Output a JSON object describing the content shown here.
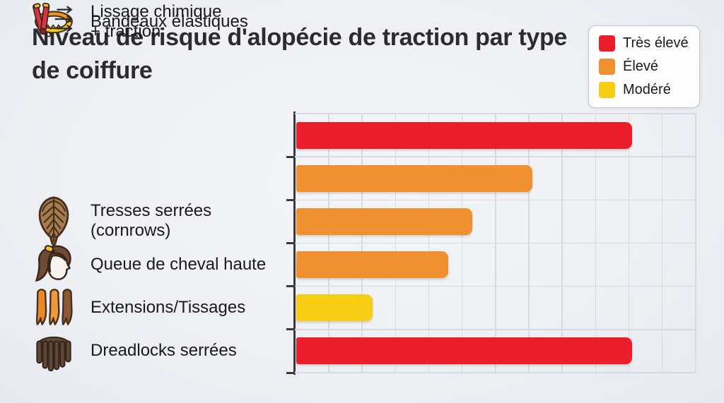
{
  "title": "Niveau de risque d'alopécie de traction par type de coiffure",
  "legend": {
    "items": [
      {
        "label": "Très élevé",
        "color": "#ec1e2c"
      },
      {
        "label": "Élevé",
        "color": "#ef9130"
      },
      {
        "label": "Modéré",
        "color": "#f8ce15"
      }
    ]
  },
  "rows": [
    {
      "line1": "Tresses serrées",
      "line2": "(cornrows)",
      "icon": "braid-icon"
    },
    {
      "line1": "Queue de cheval haute",
      "line2": "",
      "icon": "ponytail-icon"
    },
    {
      "line1": "Extensions/Tissages",
      "line2": "",
      "icon": "extensions-icon"
    },
    {
      "line1": "Dreadlocks serrées",
      "line2": "",
      "icon": "dreadlocks-icon"
    },
    {
      "line1": "Bandeaux élastiques",
      "line2": "",
      "icon": "headband-icon"
    },
    {
      "line1": "Lissage chimique",
      "line2": "+ traction",
      "icon": "flat-iron-icon"
    }
  ],
  "chart_data": {
    "type": "bar",
    "orientation": "horizontal",
    "title": "Niveau de risque d'alopécie de traction par type de coiffure",
    "categories": [
      "Tresses serrées (cornrows)",
      "Queue de cheval haute",
      "Extensions/Tissages",
      "Dreadlocks serrées",
      "Bandeaux élastiques",
      "Lissage chimique + traction"
    ],
    "values": [
      84,
      59,
      44,
      38,
      19,
      84
    ],
    "risk_levels": [
      "Très élevé",
      "Élevé",
      "Élevé",
      "Élevé",
      "Modéré",
      "Très élevé"
    ],
    "bar_colors": [
      "#ec1e2c",
      "#ef9130",
      "#ef9130",
      "#ef9130",
      "#f8ce15",
      "#ec1e2c"
    ],
    "xlabel": "",
    "ylabel": "",
    "xlim": [
      0,
      100
    ],
    "grid": true,
    "legend_position": "top-right",
    "legend_entries": [
      "Très élevé",
      "Élevé",
      "Modéré"
    ]
  }
}
